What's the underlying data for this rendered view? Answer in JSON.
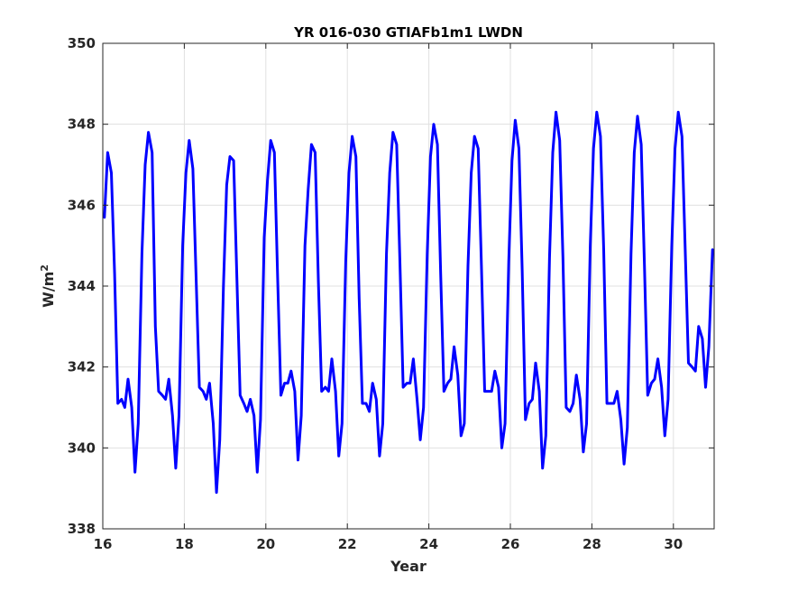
{
  "chart_data": {
    "type": "line",
    "title": "YR 016-030 GTIAFb1m1 LWDN",
    "xlabel": "Year",
    "ylabel": "W/m",
    "ylabel_superscript": "2",
    "xlim": [
      16,
      31
    ],
    "ylim": [
      338,
      350
    ],
    "xticks": [
      16,
      18,
      20,
      22,
      24,
      26,
      28,
      30
    ],
    "yticks": [
      338,
      340,
      342,
      344,
      346,
      348,
      350
    ],
    "grid": true,
    "line_color": "#0000ff",
    "series": [
      {
        "x": [
          16.04,
          16.12,
          16.21,
          16.29,
          16.37,
          16.46,
          16.54,
          16.62,
          16.71,
          16.79,
          16.87,
          16.96,
          17.04,
          17.12,
          17.21,
          17.29,
          17.37,
          17.46,
          17.54,
          17.62,
          17.71,
          17.79,
          17.87,
          17.96,
          18.04,
          18.12,
          18.21,
          18.29,
          18.37,
          18.46,
          18.54,
          18.62,
          18.71,
          18.79,
          18.87,
          18.96,
          19.04,
          19.12,
          19.21,
          19.29,
          19.37,
          19.46,
          19.54,
          19.62,
          19.71,
          19.79,
          19.87,
          19.96,
          20.04,
          20.12,
          20.21,
          20.29,
          20.37,
          20.46,
          20.54,
          20.62,
          20.71,
          20.79,
          20.87,
          20.96,
          21.04,
          21.12,
          21.21,
          21.29,
          21.37,
          21.46,
          21.54,
          21.62,
          21.71,
          21.79,
          21.87,
          21.96,
          22.04,
          22.12,
          22.21,
          22.29,
          22.37,
          22.46,
          22.54,
          22.62,
          22.71,
          22.79,
          22.87,
          22.96,
          23.04,
          23.12,
          23.21,
          23.29,
          23.37,
          23.46,
          23.54,
          23.62,
          23.71,
          23.79,
          23.87,
          23.96,
          24.04,
          24.12,
          24.21,
          24.29,
          24.37,
          24.46,
          24.54,
          24.62,
          24.71,
          24.79,
          24.87,
          24.96,
          25.04,
          25.12,
          25.21,
          25.29,
          25.37,
          25.46,
          25.54,
          25.62,
          25.71,
          25.79,
          25.87,
          25.96,
          26.04,
          26.12,
          26.21,
          26.29,
          26.37,
          26.46,
          26.54,
          26.62,
          26.71,
          26.79,
          26.87,
          26.96,
          27.04,
          27.12,
          27.21,
          27.29,
          27.37,
          27.46,
          27.54,
          27.62,
          27.71,
          27.79,
          27.87,
          27.96,
          28.04,
          28.12,
          28.21,
          28.29,
          28.37,
          28.46,
          28.54,
          28.62,
          28.71,
          28.79,
          28.87,
          28.96,
          29.04,
          29.12,
          29.21,
          29.29,
          29.37,
          29.46,
          29.54,
          29.62,
          29.71,
          29.79,
          29.87,
          29.96,
          30.04,
          30.12,
          30.21,
          30.29,
          30.37,
          30.46,
          30.54,
          30.62,
          30.71,
          30.79,
          30.87,
          30.96
        ],
        "y": [
          345.7,
          347.3,
          346.8,
          344.3,
          341.1,
          341.2,
          341.0,
          341.7,
          341.0,
          339.4,
          340.6,
          344.8,
          347.0,
          347.8,
          347.3,
          343.0,
          341.4,
          341.3,
          341.2,
          341.7,
          340.8,
          339.5,
          340.8,
          345.0,
          346.8,
          347.6,
          346.9,
          344.2,
          341.5,
          341.4,
          341.2,
          341.6,
          340.6,
          338.9,
          340.2,
          344.0,
          346.5,
          347.2,
          347.1,
          344.2,
          341.3,
          341.1,
          340.9,
          341.2,
          340.8,
          339.4,
          340.7,
          345.2,
          346.6,
          347.6,
          347.3,
          344.2,
          341.3,
          341.6,
          341.6,
          341.9,
          341.4,
          339.7,
          340.8,
          345.0,
          346.4,
          347.5,
          347.3,
          344.1,
          341.4,
          341.5,
          341.4,
          342.2,
          341.4,
          339.8,
          340.6,
          344.6,
          346.8,
          347.7,
          347.2,
          343.7,
          341.1,
          341.1,
          340.9,
          341.6,
          341.2,
          339.8,
          340.6,
          344.8,
          346.8,
          347.8,
          347.5,
          344.6,
          341.5,
          341.6,
          341.6,
          342.2,
          341.2,
          340.2,
          341.0,
          344.8,
          347.2,
          348.0,
          347.5,
          344.3,
          341.4,
          341.6,
          341.7,
          342.5,
          341.8,
          340.3,
          340.6,
          344.5,
          346.8,
          347.7,
          347.4,
          344.5,
          341.4,
          341.4,
          341.4,
          341.9,
          341.5,
          340.0,
          340.6,
          344.6,
          347.1,
          348.1,
          347.4,
          344.4,
          340.7,
          341.1,
          341.2,
          342.1,
          341.4,
          339.5,
          340.3,
          344.7,
          347.3,
          348.3,
          347.6,
          344.7,
          341.0,
          340.9,
          341.1,
          341.8,
          341.2,
          339.9,
          340.6,
          345.0,
          347.4,
          348.3,
          347.7,
          344.9,
          341.1,
          341.1,
          341.1,
          341.4,
          340.7,
          339.6,
          340.5,
          344.8,
          347.3,
          348.2,
          347.5,
          344.5,
          341.3,
          341.6,
          341.7,
          342.2,
          341.5,
          340.3,
          341.2,
          345.0,
          347.4,
          348.3,
          347.7,
          344.9,
          342.1,
          342.0,
          341.9,
          343.0,
          342.7,
          341.5,
          342.5,
          344.9
        ]
      }
    ]
  }
}
